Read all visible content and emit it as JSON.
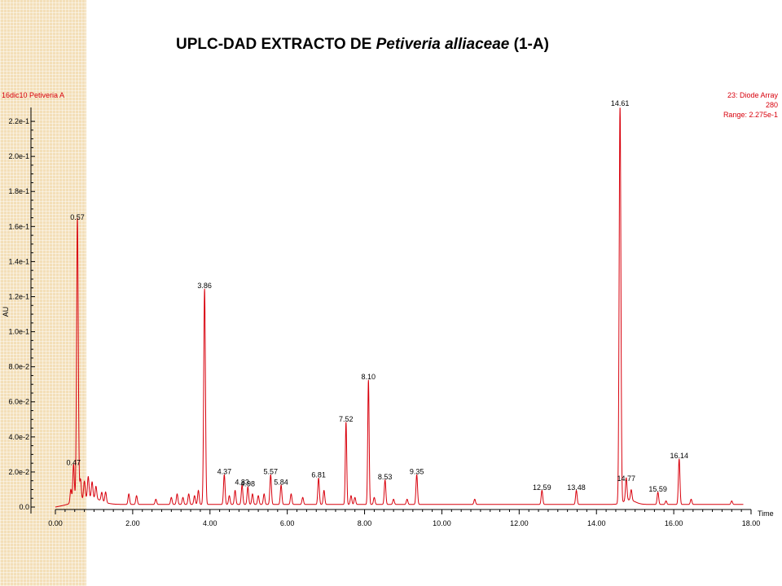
{
  "title": {
    "prefix": "UPLC-DAD EXTRACTO DE",
    "species": "Petiveria alliaceae",
    "suffix": "(1-A)"
  },
  "chart_data": {
    "type": "line",
    "sample_label": "16dic10 Petiveria A",
    "detector_lines": [
      "23: Diode Array",
      "280",
      "Range: 2.275e-1"
    ],
    "xlabel": "Time",
    "ylabel": "AU",
    "xlim": [
      0,
      18
    ],
    "ylim": [
      0,
      0.227
    ],
    "x_ticks": [
      "0.00",
      "2.00",
      "4.00",
      "6.00",
      "8.00",
      "10.00",
      "12.00",
      "14.00",
      "16.00",
      "18.00"
    ],
    "y_ticks": [
      "0.0",
      "2.0e-2",
      "4.0e-2",
      "6.0e-2",
      "8.0e-2",
      "1.0e-1",
      "1.2e-1",
      "1.4e-1",
      "1.6e-1",
      "1.8e-1",
      "2.0e-1",
      "2.2e-1"
    ],
    "y_tick_values": [
      0,
      0.02,
      0.04,
      0.06,
      0.08,
      0.1,
      0.12,
      0.14,
      0.16,
      0.18,
      0.2,
      0.22
    ],
    "line_color": "#d8000c",
    "peaks": [
      {
        "label": "0.47",
        "rt": 0.47,
        "height": 0.022
      },
      {
        "label": "0.57",
        "rt": 0.57,
        "height": 0.162
      },
      {
        "label": "3.86",
        "rt": 3.86,
        "height": 0.123
      },
      {
        "label": "4.37",
        "rt": 4.37,
        "height": 0.017
      },
      {
        "label": "4.83",
        "rt": 4.83,
        "height": 0.011
      },
      {
        "label": "4.98",
        "rt": 4.98,
        "height": 0.01
      },
      {
        "label": "5.57",
        "rt": 5.57,
        "height": 0.017
      },
      {
        "label": "5.84",
        "rt": 5.84,
        "height": 0.011
      },
      {
        "label": "6.81",
        "rt": 6.81,
        "height": 0.015
      },
      {
        "label": "7.52",
        "rt": 7.52,
        "height": 0.047
      },
      {
        "label": "8.10",
        "rt": 8.1,
        "height": 0.071
      },
      {
        "label": "8.53",
        "rt": 8.53,
        "height": 0.014
      },
      {
        "label": "9.35",
        "rt": 9.35,
        "height": 0.017
      },
      {
        "label": "12.59",
        "rt": 12.59,
        "height": 0.008
      },
      {
        "label": "13.48",
        "rt": 13.48,
        "height": 0.008
      },
      {
        "label": "14.61",
        "rt": 14.61,
        "height": 0.228
      },
      {
        "label": "14.77",
        "rt": 14.77,
        "height": 0.013
      },
      {
        "label": "15.59",
        "rt": 15.59,
        "height": 0.007
      },
      {
        "label": "16.14",
        "rt": 16.14,
        "height": 0.026
      }
    ],
    "minor_peaks": [
      {
        "rt": 0.4,
        "height": 0.008
      },
      {
        "rt": 0.65,
        "height": 0.012
      },
      {
        "rt": 0.75,
        "height": 0.01
      },
      {
        "rt": 0.85,
        "height": 0.012
      },
      {
        "rt": 0.95,
        "height": 0.009
      },
      {
        "rt": 1.05,
        "height": 0.007
      },
      {
        "rt": 1.2,
        "height": 0.005
      },
      {
        "rt": 1.3,
        "height": 0.006
      },
      {
        "rt": 1.9,
        "height": 0.006
      },
      {
        "rt": 2.1,
        "height": 0.005
      },
      {
        "rt": 2.6,
        "height": 0.003
      },
      {
        "rt": 3.0,
        "height": 0.004
      },
      {
        "rt": 3.15,
        "height": 0.006
      },
      {
        "rt": 3.3,
        "height": 0.004
      },
      {
        "rt": 3.45,
        "height": 0.006
      },
      {
        "rt": 3.6,
        "height": 0.005
      },
      {
        "rt": 3.7,
        "height": 0.008
      },
      {
        "rt": 4.5,
        "height": 0.005
      },
      {
        "rt": 4.65,
        "height": 0.008
      },
      {
        "rt": 5.1,
        "height": 0.006
      },
      {
        "rt": 5.25,
        "height": 0.005
      },
      {
        "rt": 5.4,
        "height": 0.006
      },
      {
        "rt": 6.1,
        "height": 0.006
      },
      {
        "rt": 6.4,
        "height": 0.004
      },
      {
        "rt": 6.95,
        "height": 0.008
      },
      {
        "rt": 7.65,
        "height": 0.005
      },
      {
        "rt": 7.75,
        "height": 0.004
      },
      {
        "rt": 8.25,
        "height": 0.004
      },
      {
        "rt": 8.75,
        "height": 0.003
      },
      {
        "rt": 9.1,
        "height": 0.003
      },
      {
        "rt": 10.85,
        "height": 0.003
      },
      {
        "rt": 14.9,
        "height": 0.006
      },
      {
        "rt": 15.8,
        "height": 0.002
      },
      {
        "rt": 16.45,
        "height": 0.003
      },
      {
        "rt": 17.5,
        "height": 0.002
      }
    ]
  }
}
